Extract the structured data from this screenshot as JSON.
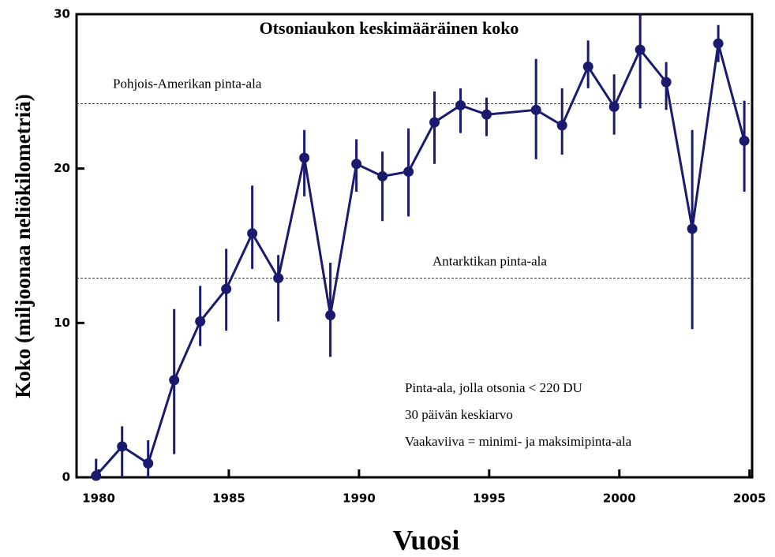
{
  "chart_data": {
    "type": "line",
    "title": "Otsoniaukon keskimääräinen koko",
    "x_label": "Vuosi",
    "y_label": "Koko (miljoonaa neliökilometriä)",
    "x": [
      1979.9,
      1980.9,
      1981.9,
      1982.9,
      1983.9,
      1984.9,
      1985.9,
      1986.9,
      1987.9,
      1988.9,
      1989.9,
      1990.9,
      1991.9,
      1992.9,
      1993.9,
      1994.9,
      1996.8,
      1997.8,
      1998.8,
      1999.8,
      2000.8,
      2001.8,
      2002.8,
      2003.8,
      2004.8
    ],
    "series": [
      {
        "color": "#1a1a6e",
        "values": [
          0.1,
          2.0,
          0.9,
          6.3,
          10.1,
          12.2,
          15.8,
          12.9,
          20.7,
          10.5,
          20.3,
          19.5,
          19.8,
          23.0,
          24.1,
          23.5,
          23.8,
          22.8,
          26.6,
          24.0,
          27.7,
          25.6,
          16.1,
          28.1,
          21.8
        ],
        "low": [
          0,
          0,
          0,
          1.5,
          8.5,
          9.5,
          13.5,
          10.1,
          18.2,
          7.8,
          18.5,
          16.6,
          16.9,
          20.3,
          22.3,
          22.1,
          20.6,
          20.9,
          25.2,
          22.2,
          23.9,
          23.8,
          9.6,
          26.9,
          18.5
        ],
        "high": [
          1.2,
          3.3,
          2.4,
          10.9,
          12.4,
          14.8,
          18.9,
          14.4,
          22.5,
          13.9,
          21.9,
          21.1,
          22.6,
          25.0,
          25.2,
          24.6,
          27.1,
          25.2,
          28.3,
          26.1,
          30,
          26.9,
          22.5,
          29.3,
          24.4
        ]
      }
    ],
    "reference_lines": [
      {
        "value": 24.2,
        "label": "Pohjois-Amerikan pinta-ala"
      },
      {
        "value": 12.9,
        "label": "Antarktikan pinta-ala"
      }
    ],
    "annotations": [
      "Pinta-ala, jolla otsonia < 220 DU",
      "30 päivän keskiarvo",
      "Vaakaviiva = minimi- ja maksimipinta-ala"
    ],
    "xlim": [
      1979.15,
      2005.1
    ],
    "ylim": [
      0,
      30
    ],
    "xticks": [
      1980,
      1985,
      1990,
      1995,
      2000,
      2005
    ],
    "yticks": [
      0,
      10,
      20,
      30
    ]
  }
}
